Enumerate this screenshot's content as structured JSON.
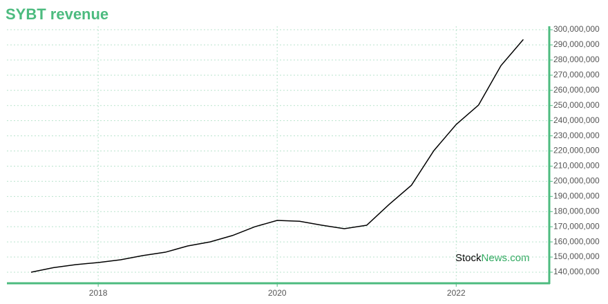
{
  "chart_data": {
    "type": "line",
    "title": "SYBT revenue",
    "watermark": [
      "Stock",
      "News.com"
    ],
    "x": [
      2017.25,
      2017.5,
      2017.75,
      2018,
      2018.25,
      2018.5,
      2018.75,
      2019,
      2019.25,
      2019.5,
      2019.75,
      2020,
      2020.25,
      2020.5,
      2020.75,
      2021,
      2021.25,
      2021.5,
      2021.75,
      2022,
      2022.25,
      2022.5,
      2022.75
    ],
    "series": [
      {
        "name": "revenue",
        "color": "#000000",
        "values": [
          140000000,
          143000000,
          145000000,
          146400000,
          148200000,
          151000000,
          153200000,
          157300000,
          160000000,
          164200000,
          170000000,
          174200000,
          173600000,
          171000000,
          168700000,
          171000000,
          184700000,
          197400000,
          220200000,
          237500000,
          250300000,
          276300000,
          293600000
        ]
      }
    ],
    "xlim": [
      2016.98,
      2023.04
    ],
    "xticks": [
      2018,
      2020,
      2022
    ],
    "ylim": [
      132700000,
      302300000
    ],
    "yticks": [
      {
        "value": 140000000,
        "label": "140,000,000"
      },
      {
        "value": 150000000,
        "label": "150,000,000"
      },
      {
        "value": 160000000,
        "label": "160,000,000"
      },
      {
        "value": 170000000,
        "label": "170,000,000"
      },
      {
        "value": 180000000,
        "label": "180,000,000"
      },
      {
        "value": 190000000,
        "label": "190,000,000"
      },
      {
        "value": 200000000,
        "label": "200,000,000"
      },
      {
        "value": 210000000,
        "label": "210,000,000"
      },
      {
        "value": 220000000,
        "label": "220,000,000"
      },
      {
        "value": 230000000,
        "label": "230,000,000"
      },
      {
        "value": 240000000,
        "label": "240,000,000"
      },
      {
        "value": 250000000,
        "label": "250,000,000"
      },
      {
        "value": 260000000,
        "label": "260,000,000"
      },
      {
        "value": 270000000,
        "label": "270,000,000"
      },
      {
        "value": 280000000,
        "label": "280,000,000"
      },
      {
        "value": 290000000,
        "label": "290,000,000"
      },
      {
        "value": 300000000,
        "label": "300,000,000"
      }
    ],
    "grid": true,
    "axis_color": "#4cbb7f"
  }
}
